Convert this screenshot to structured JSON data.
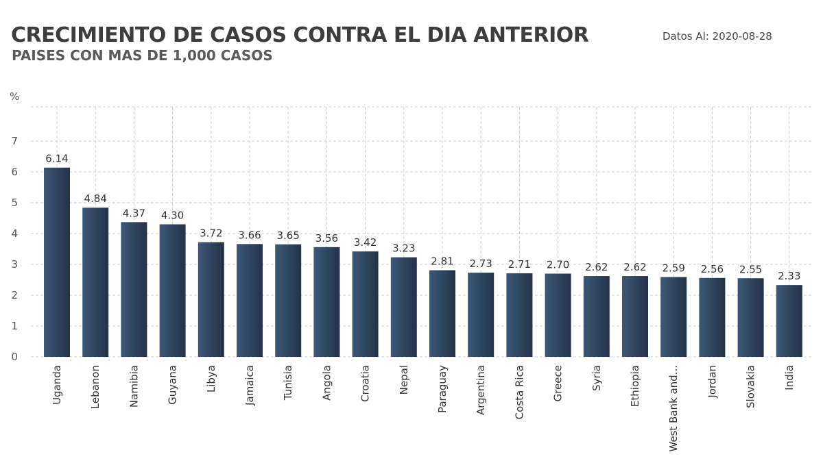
{
  "header": {
    "title": "CRECIMIENTO DE CASOS CONTRA EL DIA ANTERIOR",
    "subtitle": "PAISES CON MAS DE 1,000 CASOS",
    "date_label": "Datos Al: 2020-08-28"
  },
  "colors": {
    "bar_dark": "#243248",
    "bar_light": "#3c5878",
    "grid": "#d0d0d0"
  },
  "chart_data": {
    "type": "bar",
    "title": "CRECIMIENTO DE CASOS CONTRA EL DIA ANTERIOR",
    "subtitle": "PAISES CON MAS DE 1,000 CASOS",
    "ylabel": "%",
    "xlabel": "",
    "ylim": [
      0,
      7
    ],
    "yticks": [
      "0",
      "1",
      "2",
      "3",
      "4",
      "5",
      "6",
      "7"
    ],
    "grid": true,
    "categories": [
      "Uganda",
      "Lebanon",
      "Namibia",
      "Guyana",
      "Libya",
      "Jamaica",
      "Tunisia",
      "Angola",
      "Croatia",
      "Nepal",
      "Paraguay",
      "Argentina",
      "Costa Rica",
      "Greece",
      "Syria",
      "Ethiopia",
      "West Bank and...",
      "Jordan",
      "Slovakia",
      "India"
    ],
    "values": [
      6.14,
      4.84,
      4.37,
      4.3,
      3.72,
      3.66,
      3.65,
      3.56,
      3.42,
      3.23,
      2.81,
      2.73,
      2.71,
      2.7,
      2.62,
      2.62,
      2.59,
      2.56,
      2.55,
      2.33
    ],
    "value_labels": [
      "6.14",
      "4.84",
      "4.37",
      "4.30",
      "3.72",
      "3.66",
      "3.65",
      "3.56",
      "3.42",
      "3.23",
      "2.81",
      "2.73",
      "2.71",
      "2.70",
      "2.62",
      "2.62",
      "2.59",
      "2.56",
      "2.55",
      "2.33"
    ]
  }
}
